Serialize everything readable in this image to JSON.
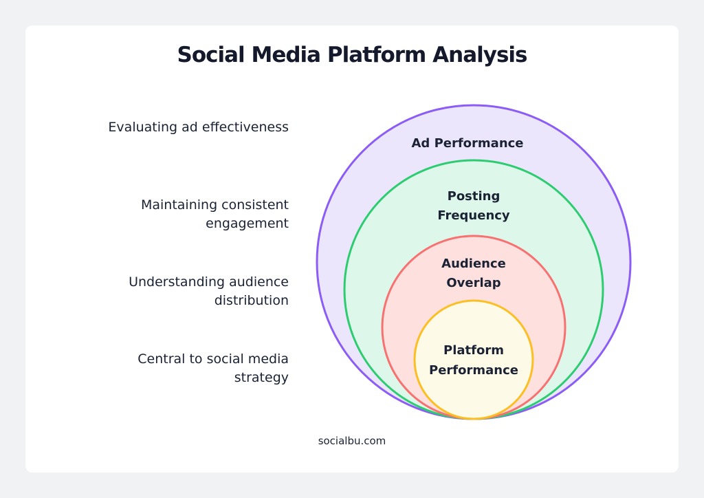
{
  "title": "Social Media Platform Analysis",
  "layers": [
    {
      "label_lines": [
        "Ad Performance"
      ],
      "description": "Evaluating ad effectiveness",
      "fill": "#ece6fd",
      "stroke": "#8b5cf6"
    },
    {
      "label_lines": [
        "Posting",
        "Frequency"
      ],
      "description": "Maintaining consistent engagement",
      "fill": "#ddf8ea",
      "stroke": "#2ecc71"
    },
    {
      "label_lines": [
        "Audience",
        "Overlap"
      ],
      "description": "Understanding audience distribution",
      "fill": "#fee0df",
      "stroke": "#f87171"
    },
    {
      "label_lines": [
        "Platform",
        "Performance"
      ],
      "description": "Central to social media strategy",
      "fill": "#fefae8",
      "stroke": "#fbbf24"
    }
  ],
  "footer": "socialbu.com"
}
